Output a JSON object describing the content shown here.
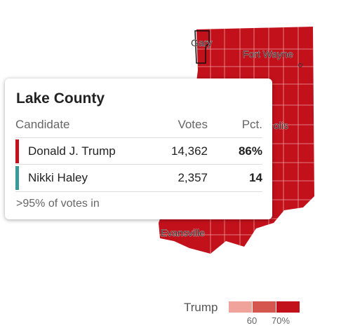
{
  "map": {
    "cities": [
      "Gary",
      "Fort Wayne",
      "olis",
      "Evansville"
    ]
  },
  "tooltip": {
    "title": "Lake County",
    "columns": [
      "Candidate",
      "Votes",
      "Pct."
    ],
    "rows": [
      [
        "Donald J. Trump",
        "14,362",
        "86%"
      ],
      [
        "Nikki Haley",
        "2,357",
        "14"
      ]
    ],
    "footer": ">95% of votes in"
  },
  "legend": {
    "label": "Trump",
    "ticks": [
      "60",
      "70%"
    ]
  }
}
